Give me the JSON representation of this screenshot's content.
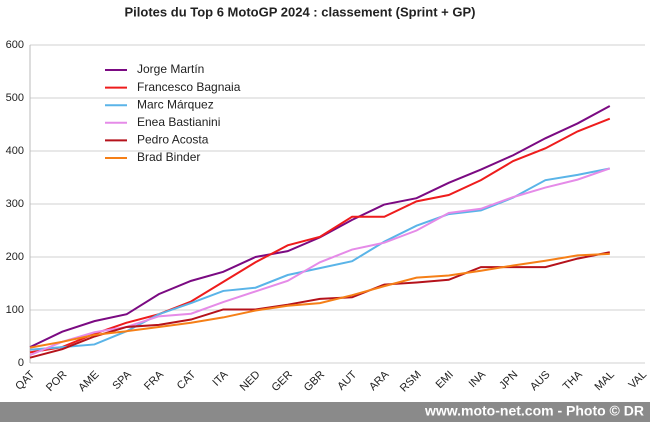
{
  "chart_data": {
    "type": "line",
    "title": "Pilotes du Top 6 MotoGP 2024 : classement (Sprint + GP)",
    "categories": [
      "QAT",
      "POR",
      "AME",
      "SPA",
      "FRA",
      "CAT",
      "ITA",
      "NED",
      "GER",
      "GBR",
      "AUT",
      "ARA",
      "RSM",
      "EMI",
      "INA",
      "JPN",
      "AUS",
      "THA",
      "MAL",
      "VAL"
    ],
    "series": [
      {
        "name": "Jorge Martín",
        "color": "#7b0a82",
        "values": [
          30,
          59,
          79,
          92,
          130,
          155,
          172,
          200,
          211,
          237,
          270,
          299,
          311,
          340,
          365,
          392,
          424,
          452,
          485,
          null
        ]
      },
      {
        "name": "Francesco Bagnaia",
        "color": "#ee1c1c",
        "values": [
          20,
          30,
          55,
          76,
          92,
          116,
          153,
          190,
          222,
          238,
          276,
          276,
          305,
          317,
          345,
          381,
          405,
          437,
          461,
          null
        ]
      },
      {
        "name": "Marc Márquez",
        "color": "#5ab4e8",
        "values": [
          25,
          30,
          35,
          60,
          92,
          113,
          136,
          142,
          166,
          179,
          192,
          229,
          259,
          281,
          288,
          312,
          345,
          355,
          367,
          null
        ]
      },
      {
        "name": "Enea Bastianini",
        "color": "#e58be8",
        "values": [
          15,
          40,
          58,
          68,
          88,
          93,
          115,
          135,
          155,
          190,
          214,
          227,
          250,
          283,
          291,
          313,
          331,
          346,
          367,
          null
        ]
      },
      {
        "name": "Pedro Acosta",
        "color": "#b5121b",
        "values": [
          10,
          26,
          50,
          68,
          72,
          82,
          101,
          101,
          110,
          121,
          124,
          148,
          152,
          157,
          181,
          181,
          181,
          197,
          209,
          null
        ]
      },
      {
        "name": "Brad Binder",
        "color": "#f57f17",
        "values": [
          29,
          40,
          53,
          60,
          68,
          76,
          86,
          99,
          108,
          113,
          128,
          145,
          161,
          165,
          174,
          184,
          193,
          203,
          206,
          null
        ]
      }
    ],
    "ylim": [
      0,
      600
    ],
    "yticks": [
      0,
      100,
      200,
      300,
      400,
      500,
      600
    ],
    "grid": true,
    "legend": "top-left",
    "footer": "www.moto-net.com - Photo © DR"
  }
}
